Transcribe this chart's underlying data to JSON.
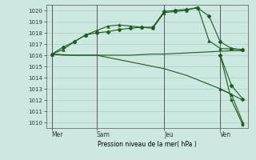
{
  "background_color": "#cce8e0",
  "grid_color": "#aacccc",
  "line_color": "#1a5c1a",
  "title": "Pression niveau de la mer( hPa )",
  "ylim": [
    1009.5,
    1020.5
  ],
  "yticks": [
    1010,
    1011,
    1012,
    1013,
    1014,
    1015,
    1016,
    1017,
    1018,
    1019,
    1020
  ],
  "day_labels": [
    "Mer",
    "Sam",
    "Jeu",
    "Ven"
  ],
  "day_positions": [
    0,
    4,
    10,
    15
  ],
  "xlim": [
    -0.5,
    17.5
  ],
  "series1_x": [
    0,
    1,
    2,
    3,
    4,
    5,
    6,
    7,
    8,
    9,
    10,
    11,
    12,
    13,
    14,
    15,
    16,
    17
  ],
  "series1_y": [
    1016.1,
    1016.7,
    1017.2,
    1017.8,
    1018.0,
    1018.1,
    1018.3,
    1018.4,
    1018.5,
    1018.5,
    1019.9,
    1020.0,
    1020.1,
    1020.2,
    1019.5,
    1017.2,
    1016.6,
    1016.5
  ],
  "series1_marker": "D",
  "series2_x": [
    0,
    1,
    2,
    3,
    4,
    5,
    6,
    7,
    8,
    9,
    10,
    11,
    12,
    13,
    14,
    15,
    16,
    17
  ],
  "series2_y": [
    1016.1,
    1016.5,
    1017.2,
    1017.8,
    1018.2,
    1018.6,
    1018.7,
    1018.6,
    1018.5,
    1018.4,
    1019.8,
    1019.9,
    1020.0,
    1020.3,
    1017.3,
    1016.6,
    1016.55,
    1016.5
  ],
  "series2_marker": "^",
  "series3_x": [
    0,
    1,
    2,
    3,
    4,
    5,
    6,
    7,
    8,
    9,
    10,
    11,
    12,
    13,
    14,
    15,
    16,
    17
  ],
  "series3_y": [
    1016.1,
    1016.05,
    1016.0,
    1016.0,
    1016.0,
    1016.0,
    1016.0,
    1016.0,
    1016.05,
    1016.1,
    1016.1,
    1016.15,
    1016.2,
    1016.25,
    1016.3,
    1016.35,
    1016.4,
    1016.4
  ],
  "series4_x": [
    0,
    1,
    2,
    3,
    4,
    5,
    6,
    7,
    8,
    9,
    10,
    11,
    12,
    13,
    14,
    15,
    16,
    17
  ],
  "series4_y": [
    1016.1,
    1016.0,
    1016.0,
    1016.0,
    1016.0,
    1015.8,
    1015.6,
    1015.4,
    1015.2,
    1015.0,
    1014.8,
    1014.5,
    1014.2,
    1013.8,
    1013.4,
    1013.0,
    1012.5,
    1012.0
  ],
  "series5_x": [
    15,
    16,
    17
  ],
  "series5_y": [
    1016.0,
    1013.3,
    1012.1
  ],
  "series5_marker": "D",
  "series6_x": [
    15,
    16,
    17
  ],
  "series6_y": [
    1016.0,
    1012.0,
    1009.8
  ],
  "series6_marker": "*",
  "series7_x": [
    15,
    16,
    17
  ],
  "series7_y": [
    1013.0,
    1012.5,
    1010.0
  ],
  "series7_marker": "^"
}
